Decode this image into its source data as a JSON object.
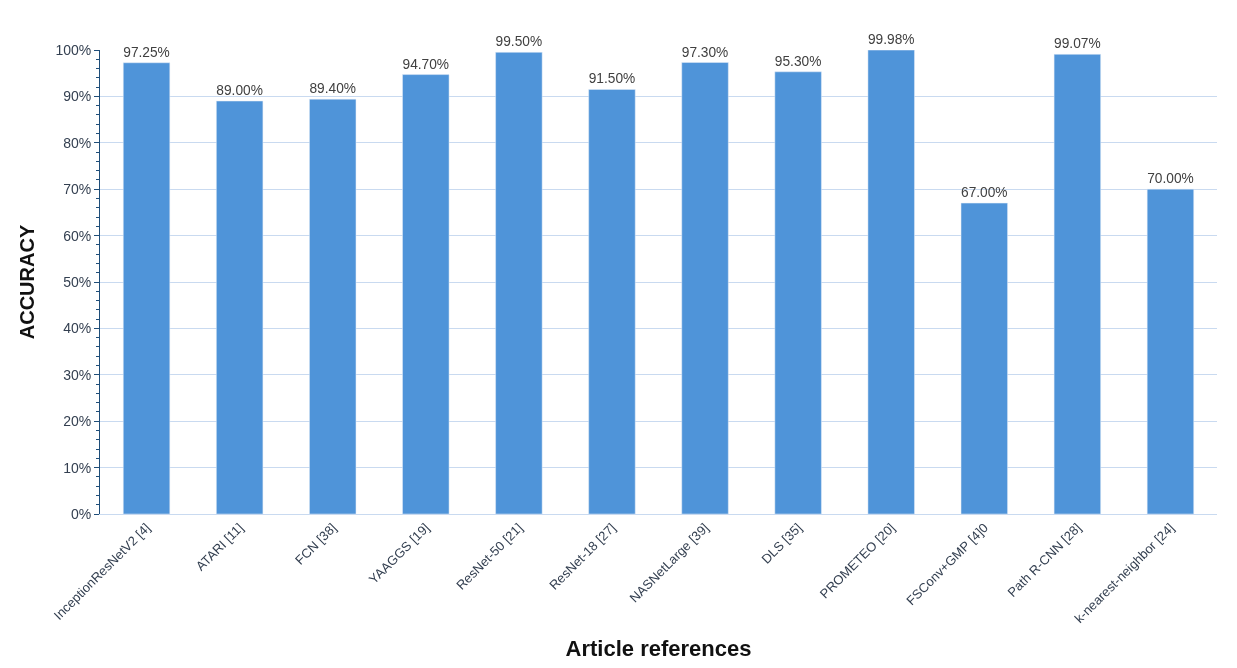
{
  "chart_data": {
    "type": "bar",
    "xlabel": "Article references",
    "ylabel": "ACCURACY",
    "categories": [
      "InceptionResNetV2 [4]",
      "ATARI [11]",
      "FCN [38]",
      "YAAGGS [19]",
      "ResNet-50 [21]",
      "ResNet-18 [27]",
      "NASNetLarge [39]",
      "DLS [35]",
      "PROMETEO [20]",
      "FSConv+GMP [4]0",
      "Path R-CNN [28]",
      "k-nearest-neighbor [24]"
    ],
    "values": [
      97.25,
      89.0,
      89.4,
      94.7,
      99.5,
      91.5,
      97.3,
      95.3,
      99.98,
      67.0,
      99.07,
      70.0
    ],
    "value_labels": [
      "97.25%",
      "89.00%",
      "89.40%",
      "94.70%",
      "99.50%",
      "91.50%",
      "97.30%",
      "95.30%",
      "99.98%",
      "67.00%",
      "99.07%",
      "70.00%"
    ],
    "color": "#4f94d9",
    "ylim": [
      0,
      100
    ],
    "yticks": [
      {
        "value": 0,
        "label": "0%"
      },
      {
        "value": 10,
        "label": "10%"
      },
      {
        "value": 20,
        "label": "20%"
      },
      {
        "value": 30,
        "label": "30%"
      },
      {
        "value": 40,
        "label": "40%"
      },
      {
        "value": 50,
        "label": "50%"
      },
      {
        "value": 60,
        "label": "60%"
      },
      {
        "value": 70,
        "label": "70%"
      },
      {
        "value": 80,
        "label": "80%"
      },
      {
        "value": 90,
        "label": "90%"
      },
      {
        "value": 100,
        "label": "100%"
      }
    ],
    "grid": "y",
    "legend": false
  }
}
